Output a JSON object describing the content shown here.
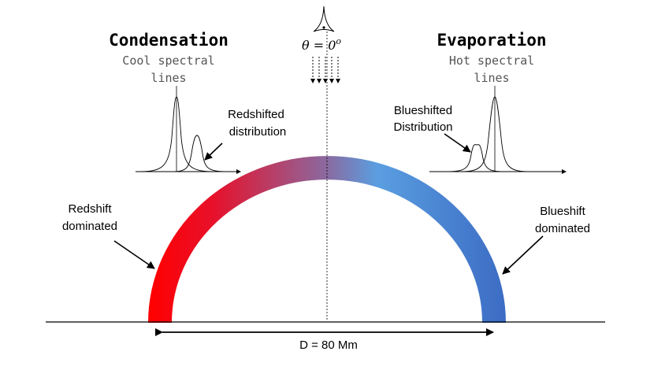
{
  "condensation": {
    "title": "Condensation",
    "subtitle_line1": "Cool spectral",
    "subtitle_line2": "lines",
    "shift_label_line1": "Redshifted",
    "shift_label_line2": "distribution",
    "footpoint_label_line1": "Redshift",
    "footpoint_label_line2": "dominated",
    "color": "#ff0000"
  },
  "evaporation": {
    "title": "Evaporation",
    "subtitle_line1": "Hot spectral",
    "subtitle_line2": "lines",
    "shift_label_line1": "Blueshifted",
    "shift_label_line2": "Distribution",
    "footpoint_label_line1": "Blueshift",
    "footpoint_label_line2": "dominated",
    "color": "#3c6cc4"
  },
  "observer": {
    "angle_label": "θ = 0",
    "angle_superscript": "o",
    "icon": "eye-icon"
  },
  "loop": {
    "width_label": "D = 80 Mm",
    "mid_color": "#8a6aa0",
    "upper_right_color": "#5a9ee0"
  }
}
